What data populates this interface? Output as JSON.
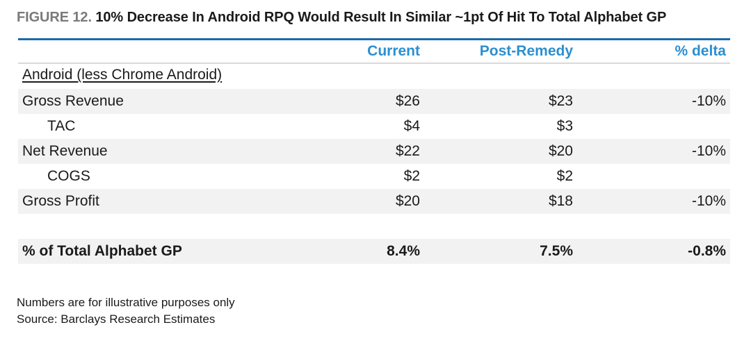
{
  "figure": {
    "label": "FIGURE 12.",
    "title": "10% Decrease In Android RPQ Would Result In Similar ~1pt Of Hit To Total Alphabet GP"
  },
  "table": {
    "columns": [
      "Current",
      "Post-Remedy",
      "% delta"
    ],
    "section_label": "Android (less Chrome Android)",
    "rows": [
      {
        "label": "Gross Revenue",
        "current": "$26",
        "post_remedy": "$23",
        "delta": "-10%"
      },
      {
        "label": "TAC",
        "current": "$4",
        "post_remedy": "$3",
        "delta": ""
      },
      {
        "label": "Net Revenue",
        "current": "$22",
        "post_remedy": "$20",
        "delta": "-10%"
      },
      {
        "label": "COGS",
        "current": "$2",
        "post_remedy": "$2",
        "delta": ""
      },
      {
        "label": "Gross Profit",
        "current": "$20",
        "post_remedy": "$18",
        "delta": "-10%"
      }
    ],
    "total_row": {
      "label": "% of Total Alphabet GP",
      "current": "8.4%",
      "post_remedy": "7.5%",
      "delta": "-0.8%"
    }
  },
  "footnotes": {
    "note": "Numbers are for illustrative purposes only",
    "source": "Source: Barclays Research Estimates"
  },
  "colors": {
    "accent_rule": "#1b6aa8",
    "column_header": "#2b8fd0",
    "row_shading": "#f2f2f2",
    "figure_label": "#7a7a7a"
  }
}
